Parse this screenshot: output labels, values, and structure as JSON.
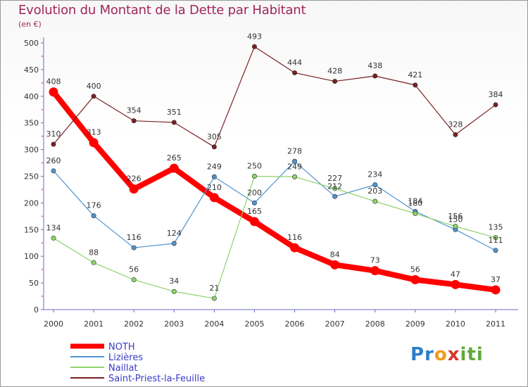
{
  "title": "Evolution du Montant de la Dette par Habitant",
  "subtitle": "(en €)",
  "logo": "Proxiti",
  "chart_data": {
    "type": "line",
    "x": [
      "2000",
      "2001",
      "2002",
      "2003",
      "2004",
      "2005",
      "2006",
      "2007",
      "2008",
      "2009",
      "2010",
      "2011"
    ],
    "ylim": [
      0,
      500
    ],
    "yticks": [
      0,
      50,
      100,
      150,
      200,
      250,
      300,
      350,
      400,
      450,
      500
    ],
    "grid": false,
    "legend": "bottom-left",
    "series": [
      {
        "name": "NOTH",
        "color": "#ff0000",
        "values": [
          408,
          313,
          226,
          265,
          210,
          165,
          116,
          84,
          73,
          56,
          47,
          37
        ]
      },
      {
        "name": "Lizières",
        "color": "#4f93cf",
        "values": [
          260,
          176,
          116,
          124,
          249,
          200,
          278,
          212,
          234,
          184,
          150,
          111
        ]
      },
      {
        "name": "Naillat",
        "color": "#8ed36a",
        "values": [
          134,
          88,
          56,
          34,
          21,
          250,
          249,
          227,
          203,
          180,
          156,
          135
        ]
      },
      {
        "name": "Saint-Priest-la-Feuille",
        "color": "#7b1f22",
        "values": [
          310,
          400,
          354,
          351,
          305,
          493,
          444,
          428,
          438,
          421,
          328,
          384
        ]
      }
    ]
  }
}
